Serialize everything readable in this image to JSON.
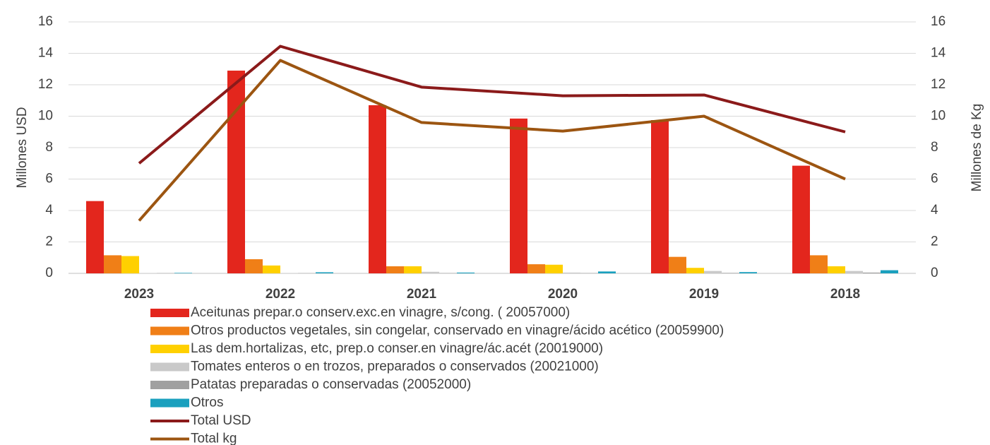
{
  "chart_data": {
    "type": "bar_line",
    "ylabel": "Millones USD",
    "y2label": "Millones de Kg",
    "categories": [
      "2023",
      "2022",
      "2021",
      "2020",
      "2019",
      "2018"
    ],
    "ylim": [
      0,
      16
    ],
    "yticks": [
      0,
      2,
      4,
      6,
      8,
      10,
      12,
      14,
      16
    ],
    "y2lim": [
      0,
      16
    ],
    "y2ticks": [
      0,
      2,
      4,
      6,
      8,
      10,
      12,
      14,
      16
    ],
    "grid": true,
    "legend": "bottom",
    "series": [
      {
        "name": "Aceitunas prepar.o conserv.exc.en vinagre, s/cong. ( 20057000)",
        "type": "bar",
        "color": "#e3261d",
        "values": [
          4.6,
          12.9,
          10.7,
          9.85,
          9.75,
          6.85
        ]
      },
      {
        "name": "Otros productos vegetales, sin congelar, conservado en vinagre/ácido acético (20059900)",
        "type": "bar",
        "color": "#f07f17",
        "values": [
          1.15,
          0.9,
          0.45,
          0.58,
          1.05,
          1.15
        ]
      },
      {
        "name": "Las dem.hortalizas, etc, prep.o conser.en vinagre/ác.acét (20019000)",
        "type": "bar",
        "color": "#ffd000",
        "values": [
          1.1,
          0.5,
          0.45,
          0.55,
          0.35,
          0.45
        ]
      },
      {
        "name": "Tomates enteros o en trozos,  preparados o conservados (20021000)",
        "type": "bar",
        "color": "#c9c9c9",
        "values": [
          0.02,
          0.02,
          0.1,
          0.05,
          0.15,
          0.15
        ]
      },
      {
        "name": "Patatas preparadas o conservadas (20052000)",
        "type": "bar",
        "color": "#a0a0a0",
        "values": [
          0.01,
          0.01,
          0.02,
          0.02,
          0.03,
          0.05
        ]
      },
      {
        "name": "Otros",
        "type": "bar",
        "color": "#1aa0be",
        "values": [
          0.03,
          0.07,
          0.05,
          0.12,
          0.08,
          0.2
        ]
      },
      {
        "name": "Total USD",
        "type": "line",
        "color": "#8b1a1a",
        "values": [
          7.0,
          14.45,
          11.85,
          11.3,
          11.35,
          9.0
        ]
      },
      {
        "name": "Total kg",
        "type": "line",
        "axis": "y2",
        "color": "#9c5511",
        "values": [
          3.35,
          13.55,
          9.6,
          9.05,
          10.0,
          6.0
        ]
      }
    ]
  }
}
